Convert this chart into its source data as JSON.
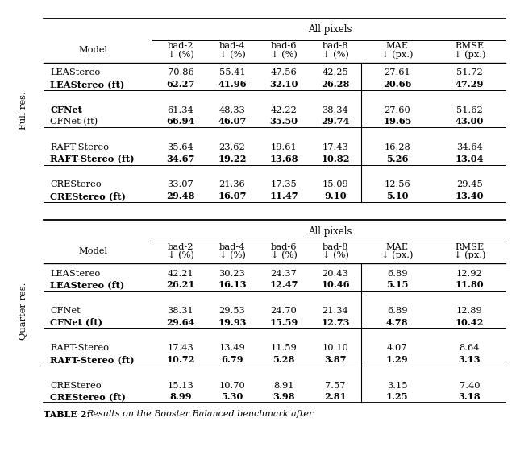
{
  "section1_label": "Full res.",
  "section2_label": "Quarter res.",
  "all_pixels_label": "All pixels",
  "col_header_line1": [
    "bad-2",
    "bad-4",
    "bad-6",
    "bad-8",
    "MAE",
    "RMSE"
  ],
  "col_header_line2": [
    "↓ (%)",
    "↓ (%)",
    "↓ (%)",
    "↓ (%)",
    "↓ (px.)",
    "↓ (px.)"
  ],
  "model_header": "Model",
  "full_res_rows": [
    [
      "LEAStereo",
      "70.86",
      "55.41",
      "47.56",
      "42.25",
      "27.61",
      "51.72"
    ],
    [
      "LEAStereo (ft)",
      "62.27",
      "41.96",
      "32.10",
      "26.28",
      "20.66",
      "47.29"
    ],
    [
      "CFNet",
      "61.34",
      "48.33",
      "42.22",
      "38.34",
      "27.60",
      "51.62"
    ],
    [
      "CFNet (ft)",
      "66.94",
      "46.07",
      "35.50",
      "29.74",
      "19.65",
      "43.00"
    ],
    [
      "RAFT-Stereo",
      "35.64",
      "23.62",
      "19.61",
      "17.43",
      "16.28",
      "34.64"
    ],
    [
      "RAFT-Stereo (ft)",
      "34.67",
      "19.22",
      "13.68",
      "10.82",
      "5.26",
      "13.04"
    ],
    [
      "CREStereo",
      "33.07",
      "21.36",
      "17.35",
      "15.09",
      "12.56",
      "29.45"
    ],
    [
      "CREStereo (ft)",
      "29.48",
      "16.07",
      "11.47",
      "9.10",
      "5.10",
      "13.40"
    ]
  ],
  "full_res_bold": [
    [
      false,
      false,
      false,
      false,
      false,
      false,
      false
    ],
    [
      true,
      true,
      true,
      true,
      true,
      true,
      true
    ],
    [
      true,
      false,
      false,
      false,
      false,
      false,
      false
    ],
    [
      false,
      true,
      true,
      true,
      true,
      true,
      true
    ],
    [
      false,
      false,
      false,
      false,
      false,
      false,
      false
    ],
    [
      true,
      true,
      true,
      true,
      true,
      true,
      true
    ],
    [
      false,
      false,
      false,
      false,
      false,
      false,
      false
    ],
    [
      true,
      true,
      true,
      true,
      true,
      true,
      true
    ]
  ],
  "quarter_res_rows": [
    [
      "LEAStereo",
      "42.21",
      "30.23",
      "24.37",
      "20.43",
      "6.89",
      "12.92"
    ],
    [
      "LEAStereo (ft)",
      "26.21",
      "16.13",
      "12.47",
      "10.46",
      "5.15",
      "11.80"
    ],
    [
      "CFNet",
      "38.31",
      "29.53",
      "24.70",
      "21.34",
      "6.89",
      "12.89"
    ],
    [
      "CFNet (ft)",
      "29.64",
      "19.93",
      "15.59",
      "12.73",
      "4.78",
      "10.42"
    ],
    [
      "RAFT-Stereo",
      "17.43",
      "13.49",
      "11.59",
      "10.10",
      "4.07",
      "8.64"
    ],
    [
      "RAFT-Stereo (ft)",
      "10.72",
      "6.79",
      "5.28",
      "3.87",
      "1.29",
      "3.13"
    ],
    [
      "CREStereo",
      "15.13",
      "10.70",
      "8.91",
      "7.57",
      "3.15",
      "7.40"
    ],
    [
      "CREStereo (ft)",
      "8.99",
      "5.30",
      "3.98",
      "2.81",
      "1.25",
      "3.18"
    ]
  ],
  "quarter_res_bold": [
    [
      false,
      false,
      false,
      false,
      false,
      false,
      false
    ],
    [
      true,
      true,
      true,
      true,
      true,
      true,
      true
    ],
    [
      false,
      false,
      false,
      false,
      false,
      false,
      false
    ],
    [
      true,
      true,
      true,
      true,
      true,
      true,
      true
    ],
    [
      false,
      false,
      false,
      false,
      false,
      false,
      false
    ],
    [
      true,
      true,
      true,
      true,
      true,
      true,
      true
    ],
    [
      false,
      false,
      false,
      false,
      false,
      false,
      false
    ],
    [
      true,
      true,
      true,
      true,
      true,
      true,
      true
    ]
  ],
  "caption_bold": "TABLE 2: ",
  "caption_italic": "Results on the Booster Balanced benchmark after",
  "bg_color": "#ffffff",
  "fs": 8.2,
  "fs_header": 8.2,
  "fs_caption": 8.0,
  "fs_section": 8.2
}
